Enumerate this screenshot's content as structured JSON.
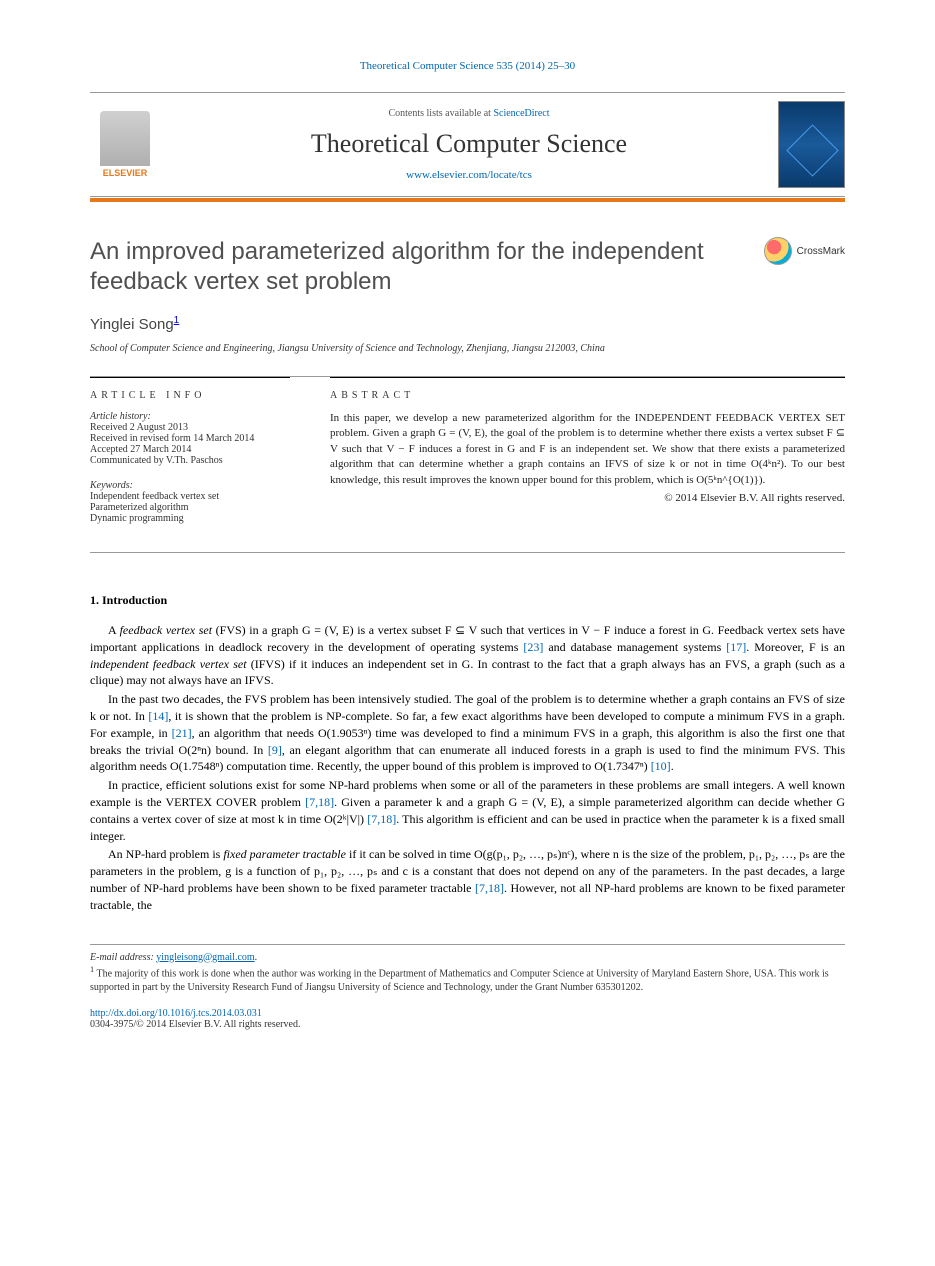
{
  "top_reference": "Theoretical Computer Science 535 (2014) 25–30",
  "header": {
    "contents_prefix": "Contents lists available at ",
    "contents_link": "ScienceDirect",
    "journal_name": "Theoretical Computer Science",
    "journal_url": "www.elsevier.com/locate/tcs",
    "publisher": "ELSEVIER"
  },
  "colors": {
    "accent_orange": "#e67817",
    "link_blue": "#0066b3",
    "text_gray": "#505050"
  },
  "paper": {
    "title": "An improved parameterized algorithm for the independent feedback vertex set problem",
    "crossmark_label": "CrossMark",
    "author": "Yinglei Song",
    "author_note_marker": "1",
    "affiliation": "School of Computer Science and Engineering, Jiangsu University of Science and Technology, Zhenjiang, Jiangsu 212003, China"
  },
  "article_info": {
    "heading": "ARTICLE INFO",
    "history_label": "Article history:",
    "received": "Received 2 August 2013",
    "revised": "Received in revised form 14 March 2014",
    "accepted": "Accepted 27 March 2014",
    "communicated": "Communicated by V.Th. Paschos",
    "keywords_label": "Keywords:",
    "keywords": [
      "Independent feedback vertex set",
      "Parameterized algorithm",
      "Dynamic programming"
    ]
  },
  "abstract": {
    "heading": "ABSTRACT",
    "text": "In this paper, we develop a new parameterized algorithm for the INDEPENDENT FEEDBACK VERTEX SET problem. Given a graph G = (V, E), the goal of the problem is to determine whether there exists a vertex subset F ⊆ V such that V − F induces a forest in G and F is an independent set. We show that there exists a parameterized algorithm that can determine whether a graph contains an IFVS of size k or not in time O(4ᵏn²). To our best knowledge, this result improves the known upper bound for this problem, which is O(5ᵏn^{O(1)}).",
    "copyright": "© 2014 Elsevier B.V. All rights reserved."
  },
  "sections": {
    "intro_heading": "1. Introduction",
    "p1_pre": "A ",
    "p1_em": "feedback vertex set",
    "p1_mid1": " (FVS) in a graph G = (V, E) is a vertex subset F ⊆ V such that vertices in V − F induce a forest in G. Feedback vertex sets have important applications in deadlock recovery in the development of operating systems ",
    "p1_ref1": "[23]",
    "p1_mid2": " and database management systems ",
    "p1_ref2": "[17]",
    "p1_mid3": ". Moreover, F is an ",
    "p1_em2": "independent feedback vertex set",
    "p1_end": " (IFVS) if it induces an independent set in G. In contrast to the fact that a graph always has an FVS, a graph (such as a clique) may not always have an IFVS.",
    "p2_pre": "In the past two decades, the FVS problem has been intensively studied. The goal of the problem is to determine whether a graph contains an FVS of size k or not. In ",
    "p2_ref1": "[14]",
    "p2_mid1": ", it is shown that the problem is NP-complete. So far, a few exact algorithms have been developed to compute a minimum FVS in a graph. For example, in ",
    "p2_ref2": "[21]",
    "p2_mid2": ", an algorithm that needs O(1.9053ⁿ) time was developed to find a minimum FVS in a graph, this algorithm is also the first one that breaks the trivial O(2ⁿn) bound. In ",
    "p2_ref3": "[9]",
    "p2_mid3": ", an elegant algorithm that can enumerate all induced forests in a graph is used to find the minimum FVS. This algorithm needs O(1.7548ⁿ) computation time. Recently, the upper bound of this problem is improved to O(1.7347ⁿ) ",
    "p2_ref4": "[10]",
    "p2_end": ".",
    "p3_pre": "In practice, efficient solutions exist for some NP-hard problems when some or all of the parameters in these problems are small integers. A well known example is the VERTEX COVER problem ",
    "p3_ref1": "[7,18]",
    "p3_mid1": ". Given a parameter k and a graph G = (V, E), a simple parameterized algorithm can decide whether G contains a vertex cover of size at most k in time O(2ᵏ|V|) ",
    "p3_ref2": "[7,18]",
    "p3_end": ". This algorithm is efficient and can be used in practice when the parameter k is a fixed small integer.",
    "p4_pre": "An NP-hard problem is ",
    "p4_em": "fixed parameter tractable",
    "p4_mid1": " if it can be solved in time O(g(p₁, p₂, …, pₛ)nᶜ), where n is the size of the problem, p₁, p₂, …, pₛ are the parameters in the problem, g is a function of p₁, p₂, …, pₛ and c is a constant that does not depend on any of the parameters. In the past decades, a large number of NP-hard problems have been shown to be fixed parameter tractable ",
    "p4_ref1": "[7,18]",
    "p4_end": ". However, not all NP-hard problems are known to be fixed parameter tractable, the"
  },
  "footnotes": {
    "email_label": "E-mail address:",
    "email": "yingleisong@gmail.com",
    "note1_marker": "1",
    "note1_text": "The majority of this work is done when the author was working in the Department of Mathematics and Computer Science at University of Maryland Eastern Shore, USA. This work is supported in part by the University Research Fund of Jiangsu University of Science and Technology, under the Grant Number 635301202."
  },
  "doi": {
    "url": "http://dx.doi.org/10.1016/j.tcs.2014.03.031",
    "issn_line": "0304-3975/© 2014 Elsevier B.V. All rights reserved."
  }
}
